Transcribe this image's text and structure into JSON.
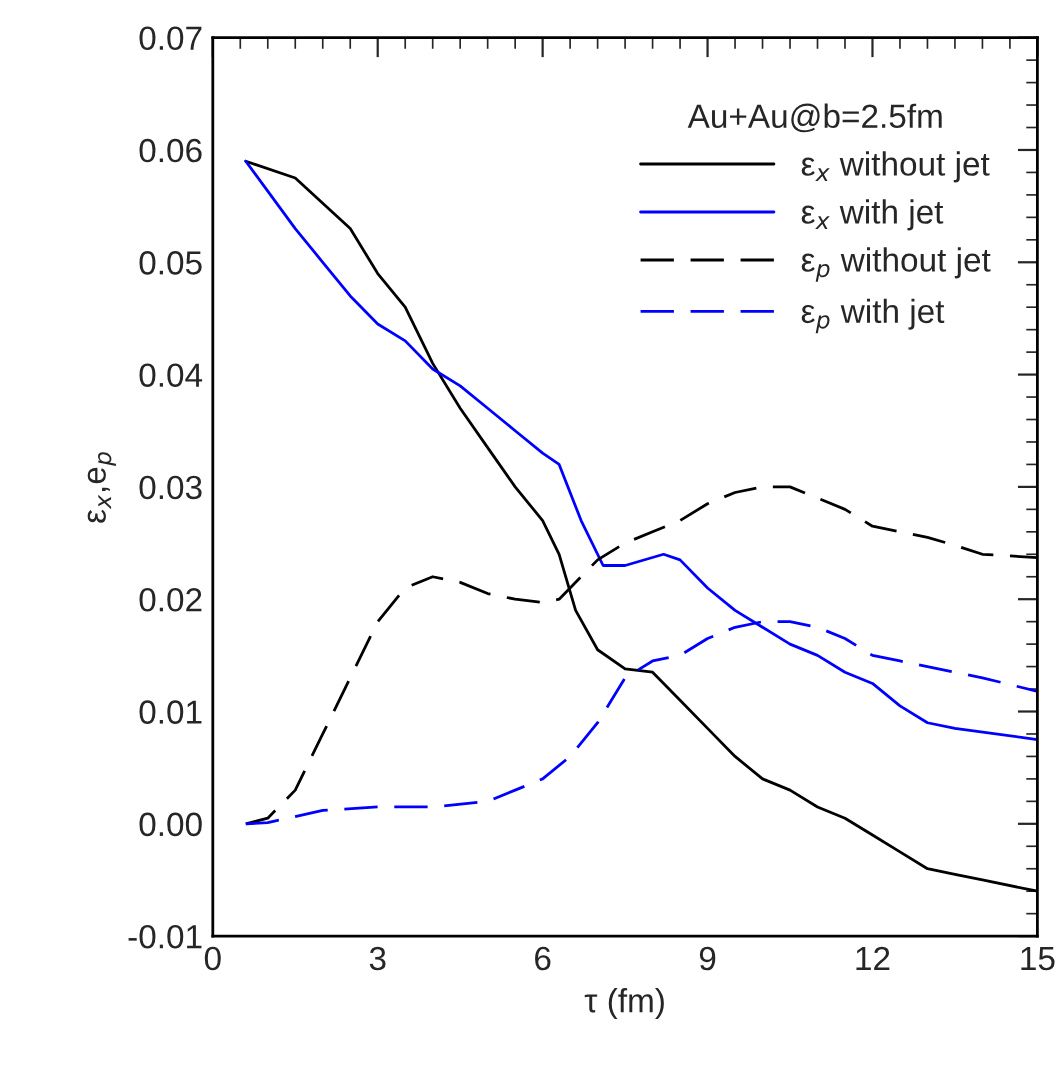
{
  "chart_data": {
    "type": "line",
    "xlabel": "τ (fm)",
    "ylabel": "ε$_{x}$,e$_{p}$",
    "legend_title": "Au+Au@b=2.5fm",
    "legend": "top right",
    "grid": false,
    "marker": "none",
    "xlim": [
      0,
      15
    ],
    "xticks": [
      0,
      3,
      6,
      9,
      12,
      15
    ],
    "ylim": [
      -0.01,
      0.07
    ],
    "yticks": [
      -0.01,
      {
        "value": 0,
        "label": "0.00"
      },
      0.01,
      0.02,
      0.03,
      0.04,
      0.05,
      0.06,
      0.07
    ],
    "series": [
      {
        "name": "ε$_{x}$ without jet",
        "color": "#000000",
        "line_style": "solid",
        "x": [
          0.6,
          1.5,
          2.5,
          3,
          3.5,
          4,
          4.5,
          5,
          5.5,
          6,
          6.3,
          6.6,
          7,
          7.5,
          8,
          8.5,
          9,
          9.5,
          10,
          10.5,
          11,
          11.5,
          12,
          12.5,
          13,
          13.5,
          14,
          15
        ],
        "values": [
          0.059,
          0.0575,
          0.053,
          0.049,
          0.046,
          0.041,
          0.037,
          0.0335,
          0.03,
          0.027,
          0.024,
          0.019,
          0.0155,
          0.0138,
          0.0135,
          0.011,
          0.0085,
          0.006,
          0.004,
          0.003,
          0.0015,
          0.0005,
          -0.001,
          -0.0025,
          -0.004,
          -0.0045,
          -0.005,
          -0.006
        ]
      },
      {
        "name": "ε$_{x}$ with jet",
        "color": "#0000ff",
        "line_style": "solid",
        "x": [
          0.6,
          1.5,
          2,
          2.5,
          3,
          3.5,
          4,
          4.5,
          5,
          5.5,
          6,
          6.3,
          6.7,
          7.1,
          7.5,
          8.2,
          8.5,
          9,
          9.5,
          10,
          10.5,
          11,
          11.5,
          12,
          12.5,
          13,
          13.5,
          15
        ],
        "values": [
          0.059,
          0.053,
          0.05,
          0.047,
          0.0445,
          0.043,
          0.0405,
          0.039,
          0.037,
          0.035,
          0.033,
          0.032,
          0.027,
          0.023,
          0.023,
          0.024,
          0.0235,
          0.021,
          0.019,
          0.0175,
          0.016,
          0.015,
          0.0135,
          0.0125,
          0.0105,
          0.009,
          0.0085,
          0.0075
        ]
      },
      {
        "name": "ε$_{p}$ without jet",
        "color": "#000000",
        "line_style": "dashed",
        "x": [
          0.6,
          1,
          1.5,
          2,
          2.5,
          3,
          3.5,
          4,
          4.5,
          5,
          5.5,
          6,
          6.3,
          6.7,
          7,
          7.5,
          8,
          8.5,
          9,
          9.5,
          10,
          10.5,
          11,
          11.5,
          12,
          12.5,
          13,
          13.5,
          14,
          15
        ],
        "values": [
          0,
          0.0005,
          0.003,
          0.008,
          0.013,
          0.018,
          0.021,
          0.022,
          0.0215,
          0.0205,
          0.02,
          0.0197,
          0.02,
          0.022,
          0.0235,
          0.025,
          0.026,
          0.027,
          0.0285,
          0.0295,
          0.03,
          0.03,
          0.029,
          0.028,
          0.0265,
          0.026,
          0.0255,
          0.0248,
          0.024,
          0.0237
        ]
      },
      {
        "name": "ε$_{p}$ with jet",
        "color": "#0000ff",
        "line_style": "dashed",
        "x": [
          0.6,
          1,
          2,
          3,
          4,
          5,
          5.5,
          6,
          6.5,
          7,
          7.5,
          8,
          8.5,
          9,
          9.5,
          10,
          10.5,
          11,
          11.5,
          12,
          12.5,
          13,
          14,
          15
        ],
        "values": [
          0,
          0.0001,
          0.0012,
          0.0015,
          0.0015,
          0.002,
          0.003,
          0.004,
          0.006,
          0.009,
          0.013,
          0.0145,
          0.015,
          0.0165,
          0.0175,
          0.018,
          0.018,
          0.0175,
          0.0165,
          0.015,
          0.0145,
          0.014,
          0.013,
          0.0118
        ]
      }
    ]
  }
}
